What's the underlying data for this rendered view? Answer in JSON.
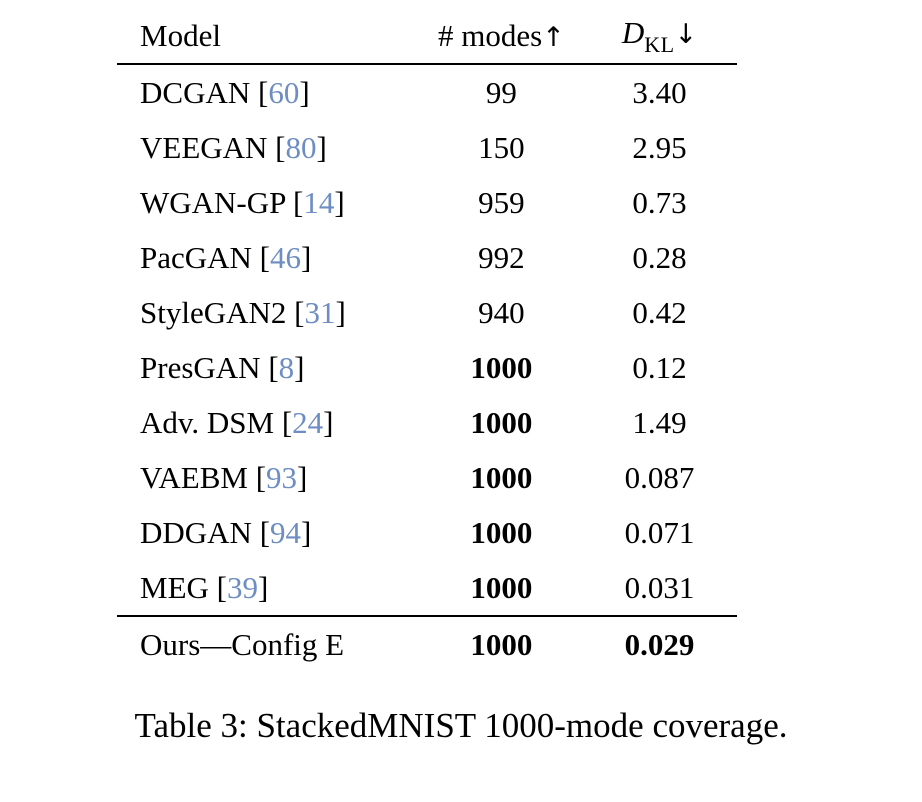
{
  "table": {
    "header": {
      "model": "Model",
      "modes": "# modes",
      "modes_arrow": "↑",
      "dkl_d": "D",
      "dkl_sub": "KL",
      "dkl_arrow": "↓"
    },
    "punct": {
      "open_bracket": "[",
      "close_bracket": "]"
    },
    "body_rows": [
      {
        "model": "DCGAN",
        "cite": "60",
        "modes": "99",
        "modes_bold": false,
        "dkl": "3.40",
        "dkl_bold": false
      },
      {
        "model": "VEEGAN",
        "cite": "80",
        "modes": "150",
        "modes_bold": false,
        "dkl": "2.95",
        "dkl_bold": false
      },
      {
        "model": "WGAN-GP",
        "cite": "14",
        "modes": "959",
        "modes_bold": false,
        "dkl": "0.73",
        "dkl_bold": false
      },
      {
        "model": "PacGAN",
        "cite": "46",
        "modes": "992",
        "modes_bold": false,
        "dkl": "0.28",
        "dkl_bold": false
      },
      {
        "model": "StyleGAN2",
        "cite": "31",
        "modes": "940",
        "modes_bold": false,
        "dkl": "0.42",
        "dkl_bold": false
      },
      {
        "model": "PresGAN",
        "cite": "8",
        "modes": "1000",
        "modes_bold": true,
        "dkl": "0.12",
        "dkl_bold": false
      },
      {
        "model": "Adv. DSM",
        "cite": "24",
        "modes": "1000",
        "modes_bold": true,
        "dkl": "1.49",
        "dkl_bold": false
      },
      {
        "model": "VAEBM",
        "cite": "93",
        "modes": "1000",
        "modes_bold": true,
        "dkl": "0.087",
        "dkl_bold": false
      },
      {
        "model": "DDGAN",
        "cite": "94",
        "modes": "1000",
        "modes_bold": true,
        "dkl": "0.071",
        "dkl_bold": false
      },
      {
        "model": "MEG",
        "cite": "39",
        "modes": "1000",
        "modes_bold": true,
        "dkl": "0.031",
        "dkl_bold": false
      }
    ],
    "final_row": {
      "model": "Ours—Config E",
      "cite": null,
      "modes": "1000",
      "modes_bold": true,
      "dkl": "0.029",
      "dkl_bold": true
    }
  },
  "caption": "Table 3: StackedMNIST 1000-mode coverage.",
  "colors": {
    "citation_blue": "#6e8dc3",
    "text": "#000000",
    "background": "#ffffff"
  },
  "chart_data": {
    "type": "table",
    "title": "Table 3: StackedMNIST 1000-mode coverage.",
    "columns": [
      "Model",
      "# modes (higher is better)",
      "D_KL (lower is better)"
    ],
    "rows": [
      [
        "DCGAN [60]",
        99,
        3.4
      ],
      [
        "VEEGAN [80]",
        150,
        2.95
      ],
      [
        "WGAN-GP [14]",
        959,
        0.73
      ],
      [
        "PacGAN [46]",
        992,
        0.28
      ],
      [
        "StyleGAN2 [31]",
        940,
        0.42
      ],
      [
        "PresGAN [8]",
        1000,
        0.12
      ],
      [
        "Adv. DSM [24]",
        1000,
        1.49
      ],
      [
        "VAEBM [93]",
        1000,
        0.087
      ],
      [
        "DDGAN [94]",
        1000,
        0.071
      ],
      [
        "MEG [39]",
        1000,
        0.031
      ],
      [
        "Ours—Config E",
        1000,
        0.029
      ]
    ]
  }
}
